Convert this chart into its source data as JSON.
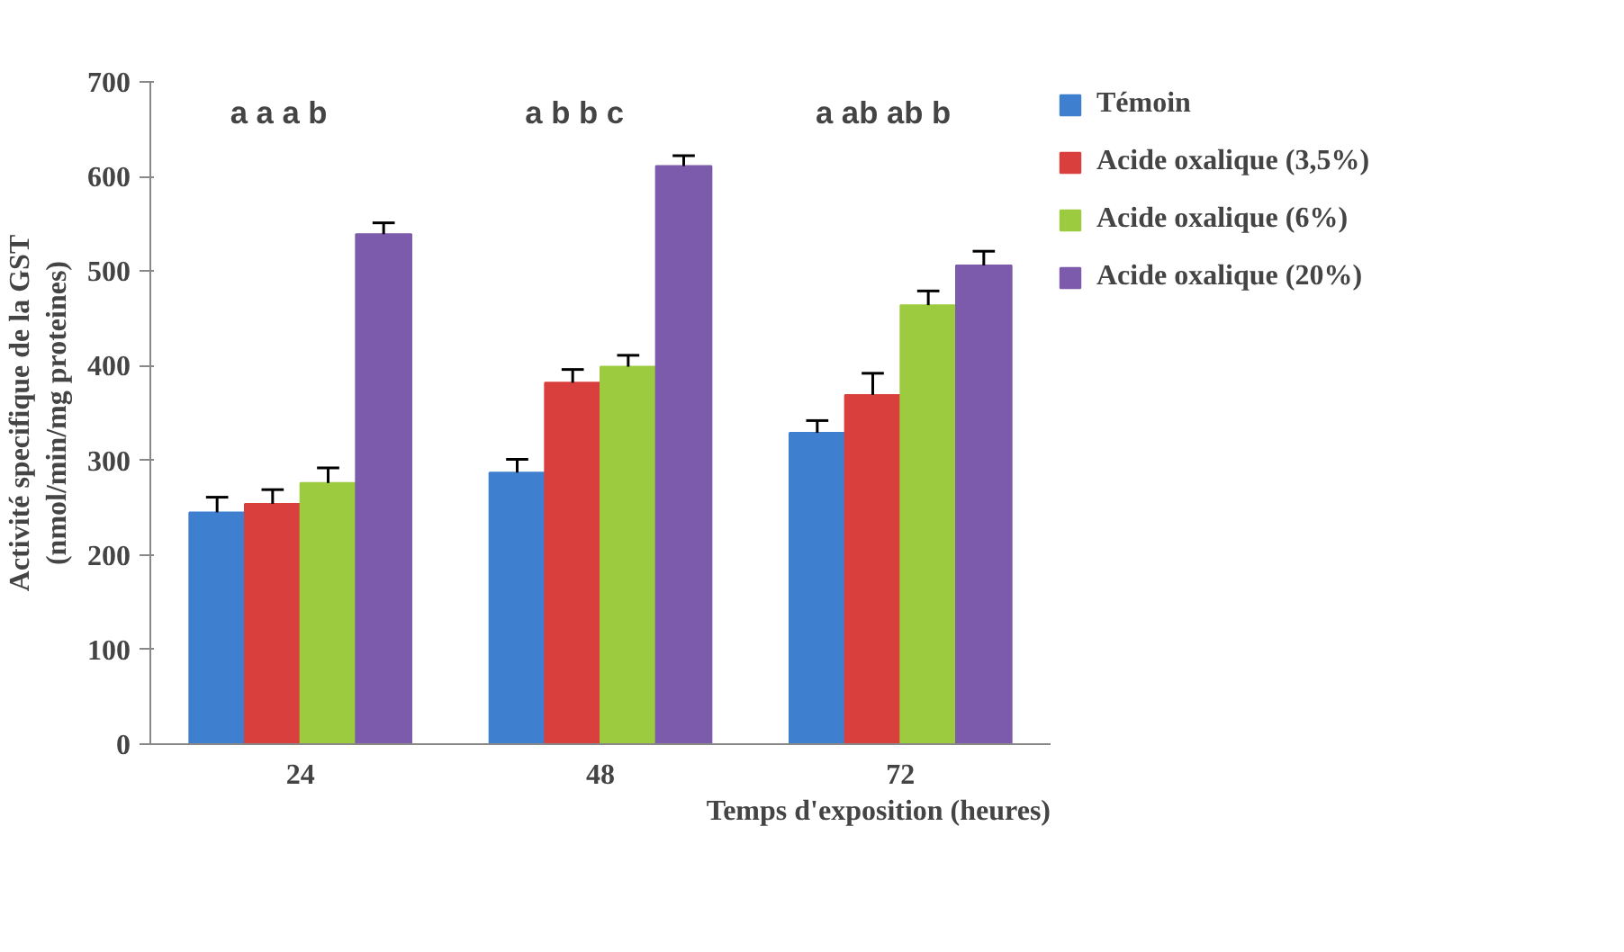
{
  "chart_data": {
    "type": "bar",
    "xlabel": "Temps d'exposition (heures)",
    "ylabel": "Activité specifique de la GST\n(nmol/min/mg proteines)",
    "categories": [
      "24",
      "48",
      "72"
    ],
    "ylim": [
      0,
      700
    ],
    "yticks": [
      0,
      100,
      200,
      300,
      400,
      500,
      600,
      700
    ],
    "grid": false,
    "legend": "right",
    "series": [
      {
        "name": "Témoin",
        "color": "#3f7fcf",
        "values": [
          245,
          287,
          329
        ],
        "errors": [
          [
            245,
            261
          ],
          [
            287,
            301
          ],
          [
            329,
            342
          ]
        ]
      },
      {
        "name": "Acide oxalique (3,5%)",
        "color": "#d93f3c",
        "values": [
          254,
          382,
          369
        ],
        "errors": [
          [
            254,
            269
          ],
          [
            382,
            396
          ],
          [
            369,
            392
          ]
        ]
      },
      {
        "name": "Acide oxalique (6%)",
        "color": "#9ccb3f",
        "values": [
          276,
          399,
          464
        ],
        "errors": [
          [
            276,
            292
          ],
          [
            399,
            411
          ],
          [
            464,
            479
          ]
        ]
      },
      {
        "name": "Acide oxalique (20%)",
        "color": "#7d5bac",
        "values": [
          539,
          611,
          506
        ],
        "errors": [
          [
            539,
            551
          ],
          [
            611,
            622
          ],
          [
            506,
            521
          ]
        ]
      }
    ],
    "annotations": [
      "a  a   a   b",
      "a   b  b    c",
      "a   ab  ab  b"
    ]
  }
}
